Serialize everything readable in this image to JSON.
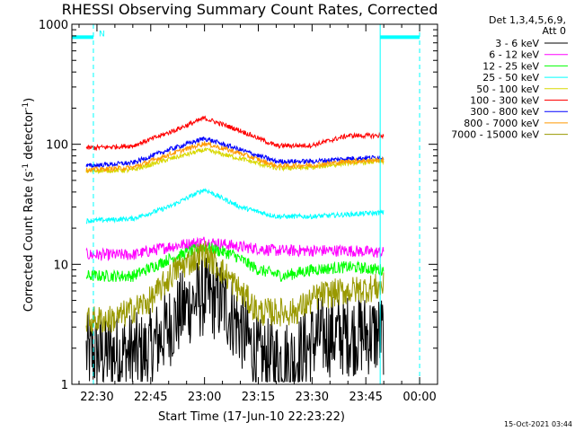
{
  "chart_data": {
    "type": "line",
    "title": "RHESSI Observing Summary Count Rates, Corrected",
    "xlabel": "Start Time (17-Jun-10 22:23:22)",
    "ylabel_main": "Corrected Count Rate (s",
    "ylabel_sup1": "-1",
    "ylabel_mid": " detector",
    "ylabel_sup2": "-1",
    "ylabel_end": ")",
    "y_scale": "log",
    "ylim": [
      1,
      1000
    ],
    "xlim_minutes_after_2230": [
      -7,
      95
    ],
    "x_ticks": [
      {
        "label": "22:30",
        "m": 0
      },
      {
        "label": "22:45",
        "m": 15
      },
      {
        "label": "23:00",
        "m": 30
      },
      {
        "label": "23:15",
        "m": 45
      },
      {
        "label": "23:30",
        "m": 60
      },
      {
        "label": "23:45",
        "m": 75
      },
      {
        "label": "00:00",
        "m": 90
      }
    ],
    "y_ticks": [
      {
        "label": "1",
        "v": 1
      },
      {
        "label": "10",
        "v": 10
      },
      {
        "label": "100",
        "v": 100
      },
      {
        "label": "1000",
        "v": 1000
      }
    ],
    "legend_header": [
      "Det 1,3,4,5,6,9,",
      "Att 0"
    ],
    "legend_placement": "right",
    "timestamp": "15-Oct-2021 03:44",
    "annotation_N": "N",
    "series": [
      {
        "name": "3 - 6 keV",
        "color": "#000000",
        "points": [
          [
            -3,
            1.8
          ],
          [
            5,
            1.8
          ],
          [
            14,
            1.8
          ],
          [
            20,
            3
          ],
          [
            25,
            4.5
          ],
          [
            30,
            5.5
          ],
          [
            35,
            4.8
          ],
          [
            40,
            3
          ],
          [
            45,
            1.6
          ],
          [
            55,
            1.6
          ],
          [
            62,
            2.5
          ],
          [
            72,
            2.6
          ],
          [
            80,
            2.6
          ]
        ]
      },
      {
        "name": "6 - 12 keV",
        "color": "#ff00ff",
        "points": [
          [
            -3,
            12
          ],
          [
            10,
            12
          ],
          [
            20,
            14
          ],
          [
            30,
            15.5
          ],
          [
            40,
            14
          ],
          [
            50,
            13
          ],
          [
            60,
            13
          ],
          [
            70,
            13
          ],
          [
            80,
            12.5
          ]
        ]
      },
      {
        "name": "12 - 25 keV",
        "color": "#00ff00",
        "points": [
          [
            -3,
            8
          ],
          [
            10,
            8
          ],
          [
            20,
            11
          ],
          [
            30,
            14
          ],
          [
            38,
            12
          ],
          [
            45,
            9
          ],
          [
            52,
            8
          ],
          [
            60,
            9
          ],
          [
            70,
            9.5
          ],
          [
            80,
            9
          ]
        ]
      },
      {
        "name": "25 - 50 keV",
        "color": "#00ffff",
        "points": [
          [
            -3,
            23
          ],
          [
            10,
            24
          ],
          [
            20,
            30
          ],
          [
            30,
            42
          ],
          [
            40,
            30
          ],
          [
            50,
            25
          ],
          [
            60,
            25
          ],
          [
            70,
            26
          ],
          [
            80,
            27
          ]
        ]
      },
      {
        "name": "50 - 100 keV",
        "color": "#d8d800",
        "points": [
          [
            -3,
            60
          ],
          [
            10,
            61
          ],
          [
            20,
            75
          ],
          [
            30,
            90
          ],
          [
            40,
            76
          ],
          [
            50,
            63
          ],
          [
            60,
            64
          ],
          [
            70,
            70
          ],
          [
            80,
            72
          ]
        ]
      },
      {
        "name": "100 - 300 keV",
        "color": "#ff0000",
        "points": [
          [
            -3,
            93
          ],
          [
            10,
            97
          ],
          [
            20,
            125
          ],
          [
            30,
            165
          ],
          [
            40,
            130
          ],
          [
            50,
            97
          ],
          [
            60,
            98
          ],
          [
            70,
            118
          ],
          [
            80,
            118
          ]
        ]
      },
      {
        "name": "300 - 800 keV",
        "color": "#0000ff",
        "points": [
          [
            -3,
            66
          ],
          [
            10,
            70
          ],
          [
            20,
            90
          ],
          [
            30,
            112
          ],
          [
            40,
            90
          ],
          [
            50,
            72
          ],
          [
            60,
            72
          ],
          [
            70,
            76
          ],
          [
            80,
            78
          ]
        ]
      },
      {
        "name": "800 - 7000 keV",
        "color": "#ff9900",
        "points": [
          [
            -3,
            61
          ],
          [
            10,
            64
          ],
          [
            20,
            82
          ],
          [
            30,
            102
          ],
          [
            40,
            84
          ],
          [
            50,
            66
          ],
          [
            60,
            67
          ],
          [
            70,
            72
          ],
          [
            80,
            74
          ]
        ]
      },
      {
        "name": "7000 - 15000 keV",
        "color": "#999900",
        "points": [
          [
            -3,
            3.4
          ],
          [
            5,
            3.5
          ],
          [
            15,
            5
          ],
          [
            22,
            9
          ],
          [
            30,
            12.5
          ],
          [
            38,
            7
          ],
          [
            45,
            4
          ],
          [
            55,
            4
          ],
          [
            62,
            5.5
          ],
          [
            70,
            6
          ],
          [
            80,
            6.5
          ]
        ]
      }
    ],
    "night_bands": [
      {
        "start_m": -7,
        "end_m": -1,
        "level": 780
      },
      {
        "start_m": 79,
        "end_m": 90,
        "level": 780
      }
    ],
    "markers": {
      "solid_cyan_m": [
        -7,
        79
      ],
      "dashed_cyan_m": [
        -1,
        90
      ]
    }
  }
}
